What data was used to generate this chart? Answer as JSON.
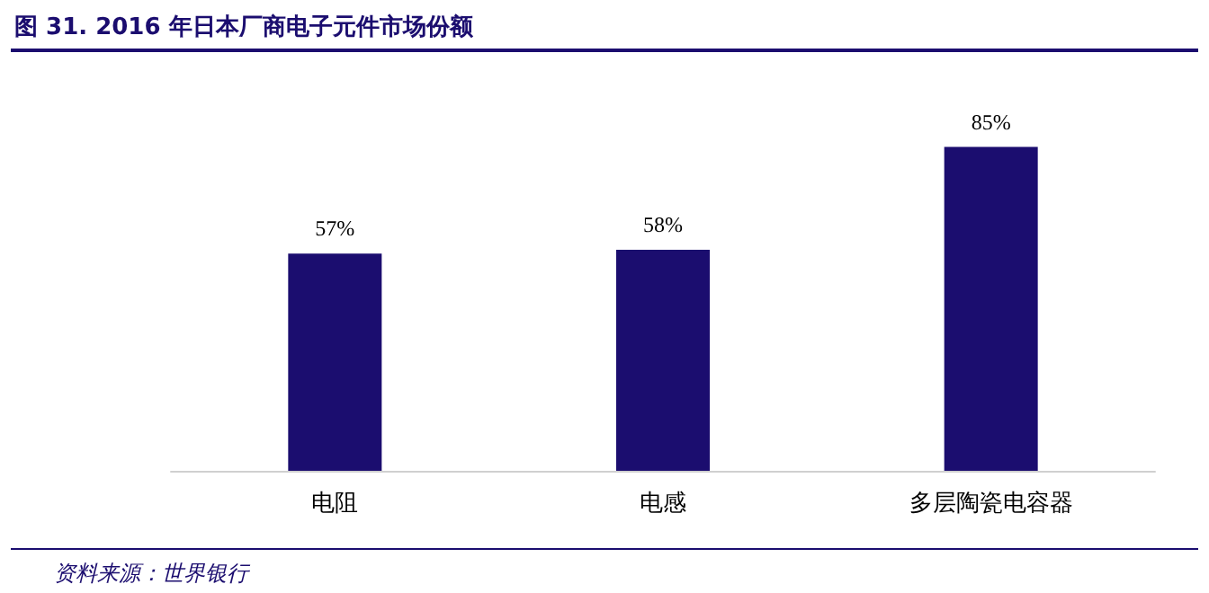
{
  "chart_data": {
    "type": "bar",
    "title": "图 31. 2016 年日本厂商电子元件市场份额",
    "categories": [
      "电阻",
      "电感",
      "多层陶瓷电容器"
    ],
    "values": [
      57,
      58,
      85
    ],
    "color": "#1b0d6f",
    "value_labels": [
      "57%",
      "58%",
      "85%"
    ],
    "annotations": [
      "资料来源：世界银行"
    ]
  }
}
